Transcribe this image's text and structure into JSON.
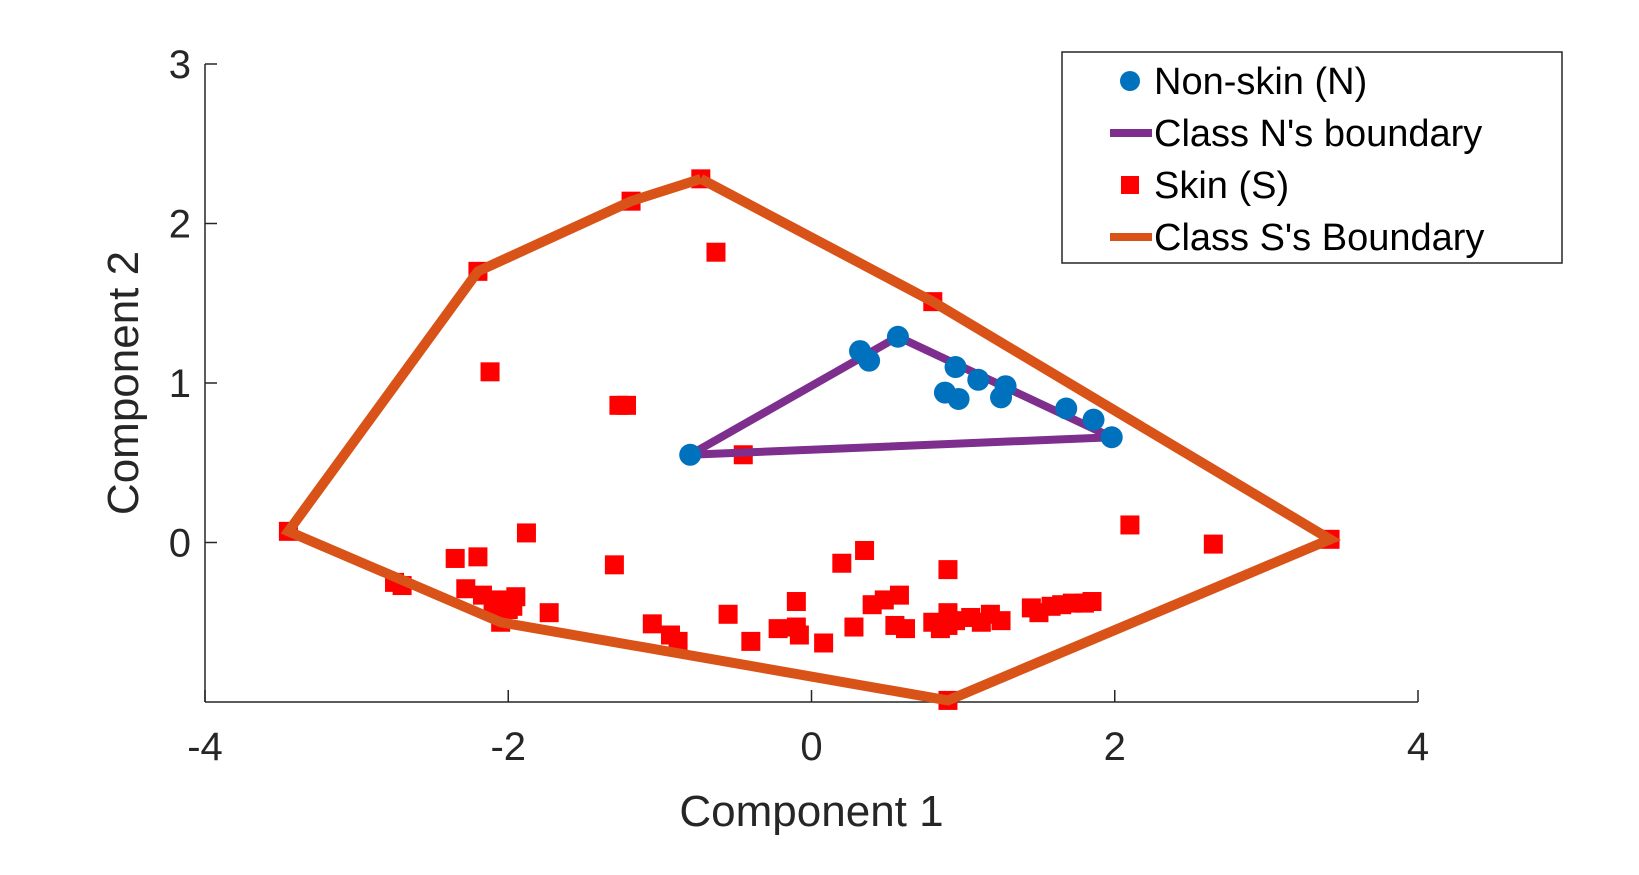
{
  "chart_data": {
    "type": "scatter",
    "xlabel": "Component 1",
    "ylabel": "Component 2",
    "xlim": [
      -4,
      4
    ],
    "ylim": [
      -1,
      3
    ],
    "xticks": [
      -4,
      -2,
      0,
      2,
      4
    ],
    "yticks": [
      0,
      1,
      2,
      3
    ],
    "xtick_labels": [
      "-4",
      "-2",
      "0",
      "2",
      "4"
    ],
    "ytick_labels": [
      "0",
      "1",
      "2",
      "3"
    ],
    "grid": false,
    "legend_position": "top-right",
    "series": [
      {
        "name": "Non-skin (N)",
        "kind": "points",
        "marker": "circle",
        "color": "#0072BD",
        "points": [
          [
            -0.8,
            0.55
          ],
          [
            0.32,
            1.2
          ],
          [
            0.38,
            1.14
          ],
          [
            0.57,
            1.29
          ],
          [
            0.95,
            1.1
          ],
          [
            1.1,
            1.02
          ],
          [
            1.28,
            0.98
          ],
          [
            0.88,
            0.94
          ],
          [
            0.97,
            0.9
          ],
          [
            1.25,
            0.91
          ],
          [
            1.68,
            0.84
          ],
          [
            1.86,
            0.77
          ],
          [
            1.98,
            0.66
          ]
        ]
      },
      {
        "name": "Class N's boundary",
        "kind": "line",
        "color": "#7E2F8E",
        "points": [
          [
            -0.8,
            0.55
          ],
          [
            0.57,
            1.29
          ],
          [
            1.98,
            0.66
          ],
          [
            -0.8,
            0.55
          ]
        ]
      },
      {
        "name": "Skin (S)",
        "kind": "points",
        "marker": "square",
        "color": "#FF0000",
        "points": [
          [
            -0.73,
            2.28
          ],
          [
            -1.19,
            2.14
          ],
          [
            -2.2,
            1.7
          ],
          [
            -0.63,
            1.82
          ],
          [
            0.8,
            1.51
          ],
          [
            -2.12,
            1.07
          ],
          [
            -1.27,
            0.86
          ],
          [
            -1.22,
            0.86
          ],
          [
            -0.45,
            0.55
          ],
          [
            -3.45,
            0.07
          ],
          [
            -1.88,
            0.06
          ],
          [
            2.1,
            0.11
          ],
          [
            2.65,
            -0.01
          ],
          [
            3.42,
            0.02
          ],
          [
            -2.35,
            -0.1
          ],
          [
            -2.2,
            -0.09
          ],
          [
            -1.3,
            -0.14
          ],
          [
            0.35,
            -0.05
          ],
          [
            0.2,
            -0.13
          ],
          [
            0.9,
            -0.17
          ],
          [
            -2.75,
            -0.25
          ],
          [
            -2.7,
            -0.27
          ],
          [
            -2.28,
            -0.29
          ],
          [
            -2.17,
            -0.33
          ],
          [
            -2.05,
            -0.36
          ],
          [
            -1.95,
            -0.34
          ],
          [
            -1.97,
            -0.4
          ],
          [
            -2.1,
            -0.39
          ],
          [
            -2.0,
            -0.42
          ],
          [
            -1.73,
            -0.44
          ],
          [
            -2.05,
            -0.5
          ],
          [
            -1.05,
            -0.51
          ],
          [
            -0.93,
            -0.58
          ],
          [
            -0.88,
            -0.62
          ],
          [
            -0.55,
            -0.45
          ],
          [
            -0.4,
            -0.62
          ],
          [
            -0.22,
            -0.54
          ],
          [
            -0.1,
            -0.37
          ],
          [
            -0.1,
            -0.53
          ],
          [
            -0.08,
            -0.58
          ],
          [
            0.08,
            -0.63
          ],
          [
            0.28,
            -0.53
          ],
          [
            0.4,
            -0.39
          ],
          [
            0.48,
            -0.36
          ],
          [
            0.58,
            -0.33
          ],
          [
            0.55,
            -0.52
          ],
          [
            0.62,
            -0.54
          ],
          [
            0.8,
            -0.5
          ],
          [
            0.85,
            -0.54
          ],
          [
            0.9,
            -0.52
          ],
          [
            0.9,
            -0.44
          ],
          [
            0.95,
            -0.49
          ],
          [
            1.05,
            -0.47
          ],
          [
            1.12,
            -0.5
          ],
          [
            1.18,
            -0.45
          ],
          [
            1.25,
            -0.49
          ],
          [
            1.45,
            -0.41
          ],
          [
            1.5,
            -0.44
          ],
          [
            1.58,
            -0.4
          ],
          [
            1.65,
            -0.39
          ],
          [
            1.72,
            -0.38
          ],
          [
            1.8,
            -0.38
          ],
          [
            1.85,
            -0.37
          ],
          [
            0.9,
            -0.99
          ]
        ]
      },
      {
        "name": "Class S's Boundary",
        "kind": "line",
        "color": "#D95319",
        "points": [
          [
            -0.73,
            2.28
          ],
          [
            0.8,
            1.51
          ],
          [
            3.42,
            0.02
          ],
          [
            0.9,
            -0.99
          ],
          [
            -2.05,
            -0.5
          ],
          [
            -3.45,
            0.07
          ],
          [
            -2.2,
            1.7
          ],
          [
            -1.19,
            2.14
          ],
          [
            -0.73,
            2.28
          ]
        ]
      }
    ]
  }
}
